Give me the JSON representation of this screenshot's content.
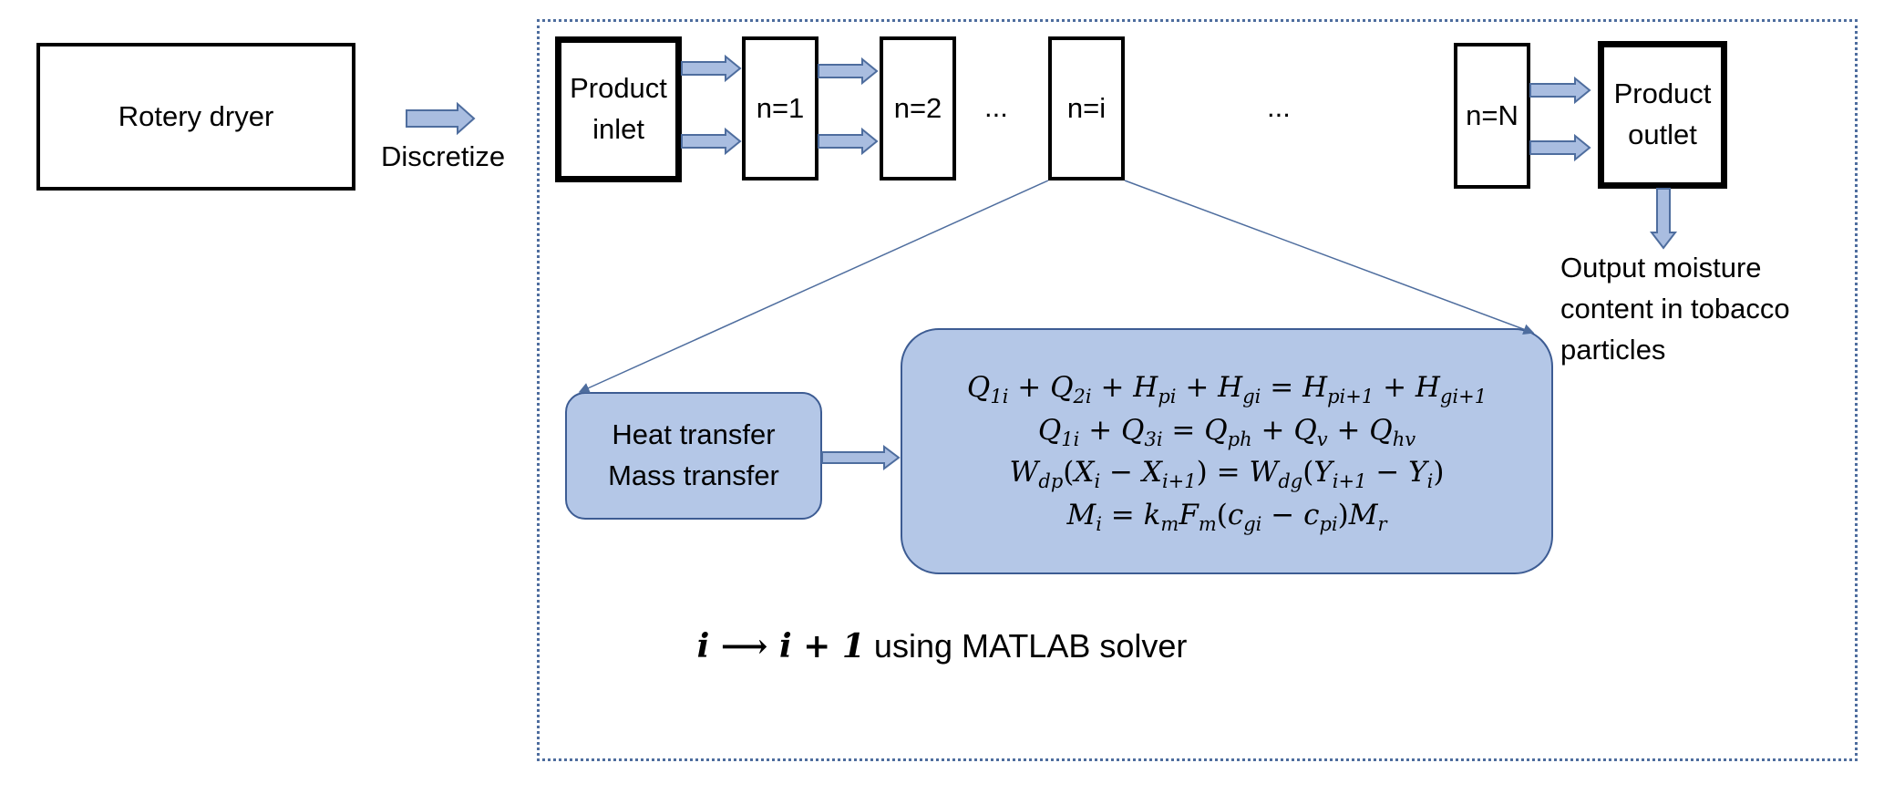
{
  "boxes": {
    "rotary_dryer": "Rotery dryer",
    "product_inlet": "Product\ninlet",
    "n1": "n=1",
    "n2": "n=2",
    "ni": "n=i",
    "nN": "n=N",
    "product_outlet": "Product\noutlet"
  },
  "labels": {
    "discretize": "Discretize",
    "ellipsis_1": "...",
    "ellipsis_2": "...",
    "output_moisture": "Output moisture\ncontent in tobacco\nparticles",
    "transfer": "Heat transfer\nMass transfer",
    "solver_math": "i ⟶ i + 1",
    "solver_text": " using MATLAB solver"
  },
  "equations": [
    "Q_{1i} + Q_{2i} + H_{pi} + H_{gi} = H_{pi+1} + H_{gi+1}",
    "Q_{1i} + Q_{3i} = Q_{ph} + Q_{v} + Q_{hv}",
    "W_{dp}(X_i − X_{i+1}) = W_{dg}(Y_{i+1} − Y_i)",
    "M_i = k_m F_m (c_{gi} − c_{pi}) M_r"
  ],
  "colors": {
    "accent_fill": "#b4c7e7",
    "accent_stroke": "#3d5c93",
    "arrow_fill": "#a9bde0",
    "frame": "#4e6d9e"
  }
}
